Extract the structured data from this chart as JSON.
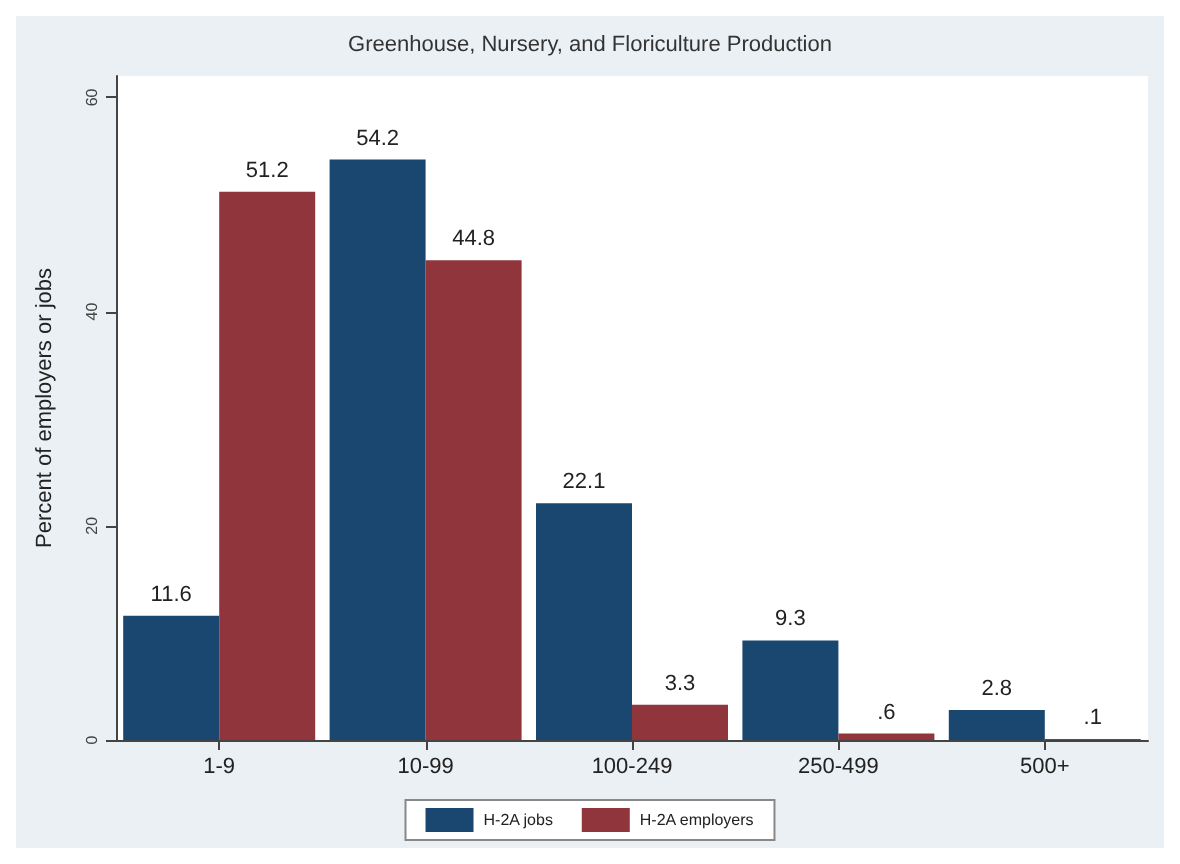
{
  "chart_data": {
    "type": "bar",
    "title": "Greenhouse, Nursery, and Floriculture Production",
    "ylabel": "Percent of employers or jobs",
    "categories": [
      "1-9",
      "10-99",
      "100-249",
      "250-499",
      "500+"
    ],
    "series": [
      {
        "name": "H-2A jobs",
        "color": "#1a476f",
        "values": [
          11.6,
          54.2,
          22.1,
          9.3,
          2.8
        ],
        "value_labels": [
          "11.6",
          "54.2",
          "22.1",
          "9.3",
          "2.8"
        ]
      },
      {
        "name": "H-2A employers",
        "color": "#90353b",
        "values": [
          51.2,
          44.8,
          3.3,
          0.6,
          0.1
        ],
        "value_labels": [
          "51.2",
          "44.8",
          "3.3",
          ".6",
          ".1"
        ]
      }
    ],
    "ylim": [
      0,
      62
    ],
    "yticks": [
      0,
      20,
      40,
      60
    ],
    "grid": false,
    "legend": "bottom"
  }
}
